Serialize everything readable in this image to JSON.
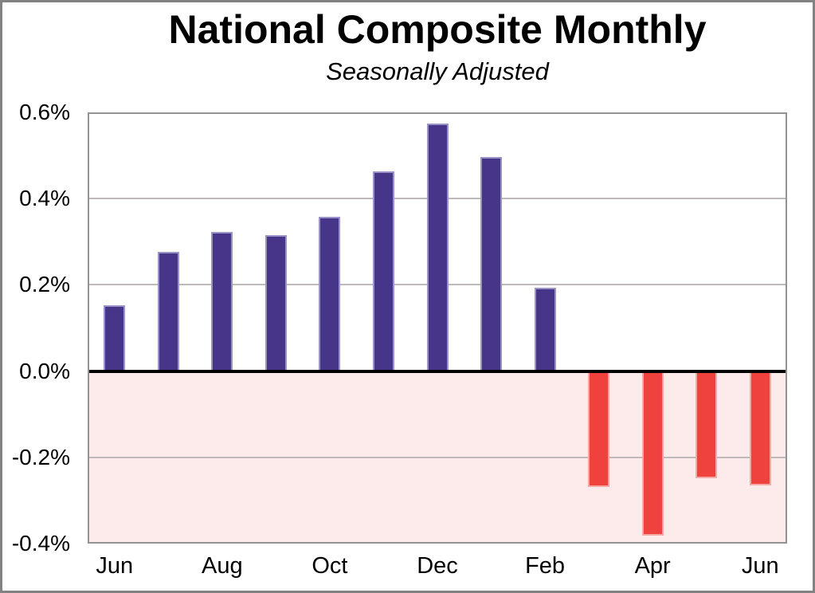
{
  "title": "National Composite Monthly",
  "subtitle": "Seasonally Adjusted",
  "chart_data": {
    "type": "bar",
    "categories": [
      "Jun",
      "Jul",
      "Aug",
      "Sep",
      "Oct",
      "Nov",
      "Dec",
      "Jan",
      "Feb",
      "Mar",
      "Apr",
      "May",
      "Jun"
    ],
    "values": [
      0.152,
      0.276,
      0.323,
      0.315,
      0.358,
      0.464,
      0.574,
      0.496,
      0.194,
      -0.268,
      -0.382,
      -0.249,
      -0.265
    ],
    "title": "National Composite Monthly",
    "subtitle": "Seasonally Adjusted",
    "xlabel": "",
    "ylabel": "",
    "unit": "%",
    "ylim": [
      -0.4,
      0.6
    ],
    "y_ticks": [
      0.6,
      0.4,
      0.2,
      0.0,
      -0.2,
      -0.4
    ],
    "y_tick_labels": [
      "0.6%",
      "0.4%",
      "0.2%",
      "0.0%",
      "-0.2%",
      "-0.4%"
    ],
    "x_tick_every": 2,
    "x_tick_labels": [
      "Jun",
      "Aug",
      "Oct",
      "Dec",
      "Feb",
      "Apr",
      "Jun"
    ],
    "grid": true,
    "legend": false,
    "negative_region_shaded": true,
    "colors": {
      "positive_bar": "#463589",
      "positive_bar_outline": "#9A93C6",
      "negative_bar": "#EF423E",
      "negative_bar_outline": "#F5A8A5",
      "negative_region_bg": "#FDEBEB",
      "gridline": "#BFB9B9",
      "zero_line": "#000000",
      "plot_border": "#929292",
      "frame_border": "#828282",
      "text": "#000000",
      "background": "#FFFFFF"
    }
  }
}
